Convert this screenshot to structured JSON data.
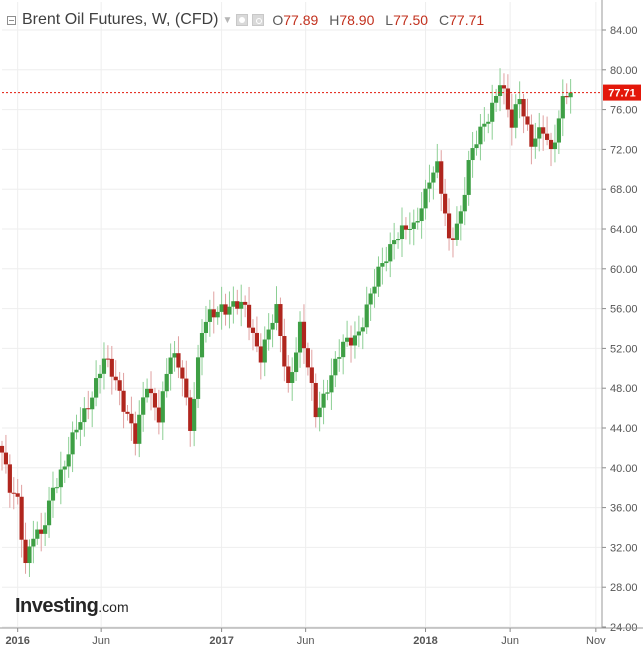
{
  "header": {
    "title": "Brent Oil Futures, W, (CFD)",
    "ohlc": [
      {
        "key": "O",
        "value": "77.89"
      },
      {
        "key": "H",
        "value": "78.90"
      },
      {
        "key": "L",
        "value": "77.50"
      },
      {
        "key": "C",
        "value": "77.71"
      }
    ]
  },
  "logo": {
    "bold": "Investing",
    "suffix": ".com"
  },
  "colors": {
    "up": "#3e9f45",
    "down": "#b0261e",
    "wick_up": "#8ccf94",
    "wick_down": "#e0a0a0",
    "last_price": "#e3170a",
    "grid": "#eeeeee",
    "axis_text": "#555555"
  },
  "chart_data": {
    "type": "candlestick",
    "interval": "weekly",
    "symbol": "Brent Oil Futures (CFD)",
    "last_price": "77.71",
    "y_range": [
      24,
      84
    ],
    "y_ticks": [
      "24.00",
      "28.00",
      "32.00",
      "36.00",
      "40.00",
      "44.00",
      "48.00",
      "52.00",
      "56.00",
      "60.00",
      "64.00",
      "68.00",
      "72.00",
      "76.00",
      "80.00",
      "84.00"
    ],
    "x_range": [
      "2015-12-07",
      "2018-11-12"
    ],
    "x_ticks": [
      {
        "label": "2016",
        "date": "2016-01-04",
        "bold": true
      },
      {
        "label": "Jun",
        "date": "2016-06-01",
        "bold": false
      },
      {
        "label": "2017",
        "date": "2017-01-02",
        "bold": true
      },
      {
        "label": "Jun",
        "date": "2017-06-01",
        "bold": false
      },
      {
        "label": "2018",
        "date": "2018-01-01",
        "bold": true
      },
      {
        "label": "Jun",
        "date": "2018-06-01",
        "bold": false
      },
      {
        "label": "Nov",
        "date": "2018-11-01",
        "bold": false
      }
    ],
    "anchors": [
      [
        "2015-12-07",
        41.0
      ],
      [
        "2015-12-21",
        37.8
      ],
      [
        "2016-01-04",
        37.2
      ],
      [
        "2016-01-18",
        30.5
      ],
      [
        "2016-02-01",
        33.0
      ],
      [
        "2016-02-15",
        32.8
      ],
      [
        "2016-03-07",
        38.5
      ],
      [
        "2016-03-28",
        40.0
      ],
      [
        "2016-04-25",
        45.0
      ],
      [
        "2016-05-23",
        48.5
      ],
      [
        "2016-06-06",
        50.5
      ],
      [
        "2016-06-27",
        49.0
      ],
      [
        "2016-07-18",
        45.5
      ],
      [
        "2016-08-01",
        42.5
      ],
      [
        "2016-08-22",
        48.5
      ],
      [
        "2016-09-12",
        45.5
      ],
      [
        "2016-10-03",
        51.0
      ],
      [
        "2016-10-24",
        49.5
      ],
      [
        "2016-11-07",
        44.5
      ],
      [
        "2016-11-28",
        53.5
      ],
      [
        "2016-12-12",
        55.0
      ],
      [
        "2017-01-02",
        56.5
      ],
      [
        "2017-02-13",
        55.8
      ],
      [
        "2017-03-13",
        51.5
      ],
      [
        "2017-04-10",
        55.5
      ],
      [
        "2017-05-01",
        48.5
      ],
      [
        "2017-05-22",
        54.0
      ],
      [
        "2017-06-19",
        45.5
      ],
      [
        "2017-07-10",
        48.5
      ],
      [
        "2017-08-07",
        52.0
      ],
      [
        "2017-09-04",
        54.0
      ],
      [
        "2017-09-25",
        57.0
      ],
      [
        "2017-10-16",
        60.5
      ],
      [
        "2017-11-06",
        63.5
      ],
      [
        "2017-12-11",
        63.8
      ],
      [
        "2018-01-08",
        69.5
      ],
      [
        "2018-01-22",
        70.0
      ],
      [
        "2018-02-12",
        62.5
      ],
      [
        "2018-03-05",
        66.0
      ],
      [
        "2018-03-19",
        70.5
      ],
      [
        "2018-04-16",
        74.5
      ],
      [
        "2018-05-14",
        79.0
      ],
      [
        "2018-06-04",
        74.0
      ],
      [
        "2018-06-18",
        77.5
      ],
      [
        "2018-07-09",
        73.0
      ],
      [
        "2018-07-30",
        73.5
      ],
      [
        "2018-08-13",
        71.5
      ],
      [
        "2018-09-03",
        77.5
      ],
      [
        "2018-09-17",
        78.5
      ]
    ]
  }
}
